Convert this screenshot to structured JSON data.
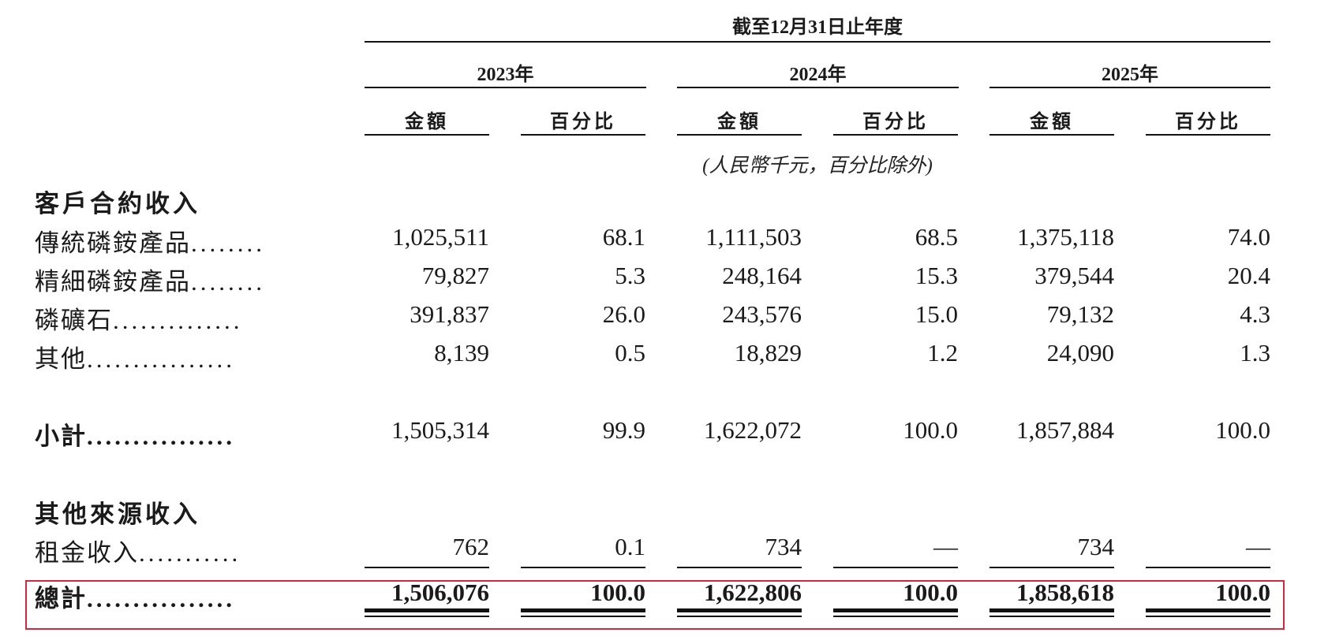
{
  "header": {
    "period": "截至12月31日止年度",
    "years": [
      "2023年",
      "2024年",
      "2025年"
    ],
    "amount_label": "金額",
    "percent_label": "百分比",
    "unit_note": "(人民幣千元，百分比除外)"
  },
  "sections": {
    "contract_revenue": "客戶合約收入",
    "other_revenue": "其他來源收入"
  },
  "rows": {
    "traditional": {
      "label": "傳統磷銨產品",
      "dots": "........",
      "values": [
        "1,025,511",
        "68.1",
        "1,111,503",
        "68.5",
        "1,375,118",
        "74.0"
      ]
    },
    "fine": {
      "label": "精細磷銨產品",
      "dots": "........",
      "values": [
        "79,827",
        "5.3",
        "248,164",
        "15.3",
        "379,544",
        "20.4"
      ]
    },
    "rock": {
      "label": "磷礦石",
      "dots": "..............",
      "values": [
        "391,837",
        "26.0",
        "243,576",
        "15.0",
        "79,132",
        "4.3"
      ]
    },
    "others": {
      "label": "其他",
      "dots": "................",
      "values": [
        "8,139",
        "0.5",
        "18,829",
        "1.2",
        "24,090",
        "1.3"
      ]
    },
    "subtotal": {
      "label": "小計",
      "dots": "................",
      "values": [
        "1,505,314",
        "99.9",
        "1,622,072",
        "100.0",
        "1,857,884",
        "100.0"
      ]
    },
    "rental": {
      "label": "租金收入",
      "dots": "...........",
      "values": [
        "762",
        "0.1",
        "734",
        "—",
        "734",
        "—"
      ]
    },
    "total": {
      "label": "總計",
      "dots": "................",
      "values": [
        "1,506,076",
        "100.0",
        "1,622,806",
        "100.0",
        "1,858,618",
        "100.0"
      ]
    }
  },
  "colors": {
    "text": "#1a1a1a",
    "rule": "#111111",
    "highlight": "#d7263d"
  }
}
